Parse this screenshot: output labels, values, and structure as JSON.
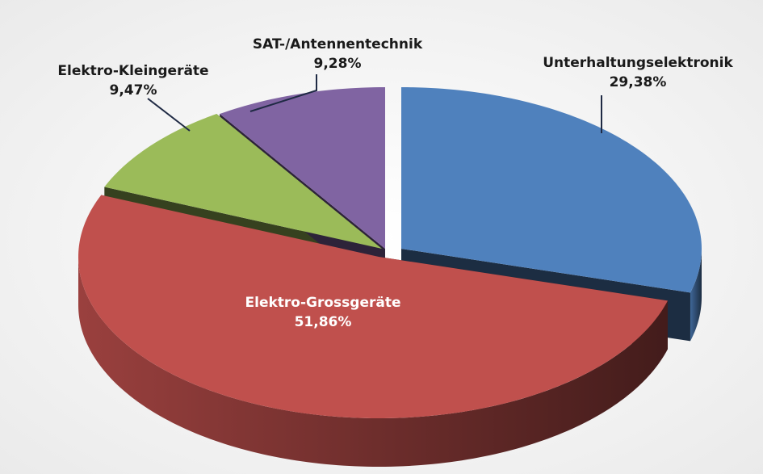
{
  "chart_data": {
    "type": "pie",
    "categories": [
      "Unterhaltungselektronik",
      "Elektro-Grossgeräte",
      "Elektro-Kleingeräte",
      "SAT-/Antennentechnik"
    ],
    "values": [
      29.38,
      51.86,
      9.47,
      9.28
    ],
    "value_labels": [
      "29,38%",
      "51,86%",
      "9,47%",
      "9,28%"
    ],
    "colors": [
      "#4f81bd",
      "#c0504d",
      "#9bbb59",
      "#8064a2"
    ]
  }
}
